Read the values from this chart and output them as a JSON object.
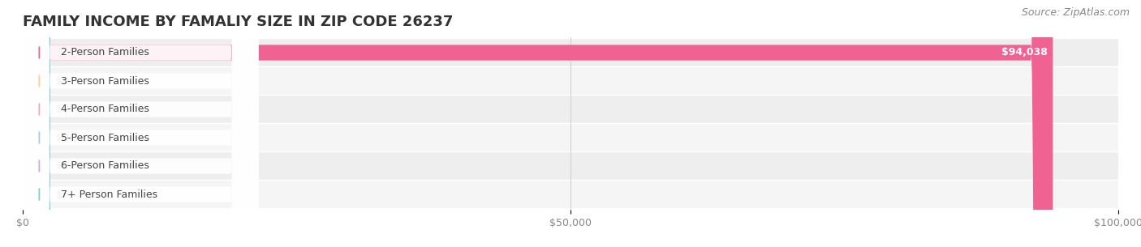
{
  "title": "FAMILY INCOME BY FAMALIY SIZE IN ZIP CODE 26237",
  "source": "Source: ZipAtlas.com",
  "categories": [
    "2-Person Families",
    "3-Person Families",
    "4-Person Families",
    "5-Person Families",
    "6-Person Families",
    "7+ Person Families"
  ],
  "values": [
    94038,
    0,
    0,
    0,
    0,
    0
  ],
  "bar_colors": [
    "#f06292",
    "#ffcc99",
    "#f4a9a8",
    "#aec6e8",
    "#c9abe0",
    "#7ececa"
  ],
  "label_colors": [
    "#f06292",
    "#ffcc99",
    "#f4a9a8",
    "#aec6e8",
    "#c9abe0",
    "#7ececa"
  ],
  "background_color": "#ffffff",
  "row_bg_color": "#f2f2f2",
  "xlim": [
    0,
    100000
  ],
  "xticks": [
    0,
    50000,
    100000
  ],
  "xtick_labels": [
    "$0",
    "$50,000",
    "$100,000"
  ],
  "value_label_94038": "$94,038",
  "value_label_0": "$0",
  "title_fontsize": 13,
  "label_fontsize": 9,
  "tick_fontsize": 9,
  "source_fontsize": 9
}
